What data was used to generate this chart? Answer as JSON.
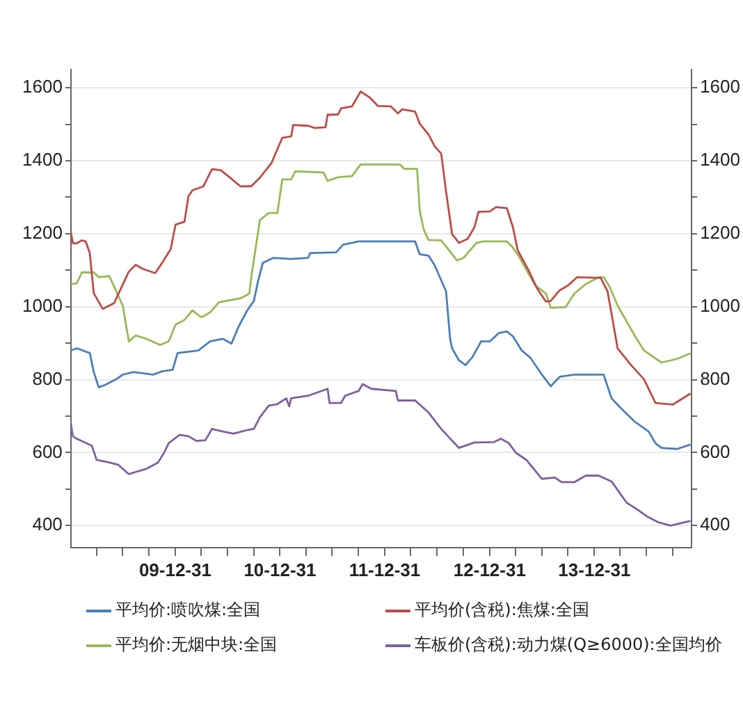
{
  "chart_data": {
    "type": "line",
    "legend": "bottom",
    "grid": "y",
    "marker": "none",
    "line_style": "solid",
    "xlim": [
      "2009-01-01",
      "2014-12-05"
    ],
    "xticks": [
      {
        "value": "2009-03-31",
        "label": null
      },
      {
        "value": "2009-06-30",
        "label": null
      },
      {
        "value": "2009-09-30",
        "label": null
      },
      {
        "value": "2009-12-31",
        "label": "09-12-31"
      },
      {
        "value": "2010-03-31",
        "label": null
      },
      {
        "value": "2010-06-30",
        "label": null
      },
      {
        "value": "2010-09-30",
        "label": null
      },
      {
        "value": "2010-12-31",
        "label": "10-12-31"
      },
      {
        "value": "2011-03-31",
        "label": null
      },
      {
        "value": "2011-06-30",
        "label": null
      },
      {
        "value": "2011-09-30",
        "label": null
      },
      {
        "value": "2011-12-31",
        "label": "11-12-31"
      },
      {
        "value": "2012-03-31",
        "label": null
      },
      {
        "value": "2012-06-30",
        "label": null
      },
      {
        "value": "2012-09-30",
        "label": null
      },
      {
        "value": "2012-12-31",
        "label": "12-12-31"
      },
      {
        "value": "2013-03-31",
        "label": null
      },
      {
        "value": "2013-06-30",
        "label": null
      },
      {
        "value": "2013-09-30",
        "label": null
      },
      {
        "value": "2013-12-31",
        "label": "13-12-31"
      },
      {
        "value": "2014-03-31",
        "label": null
      },
      {
        "value": "2014-06-30",
        "label": null
      },
      {
        "value": "2014-09-30",
        "label": null
      }
    ],
    "ylim": [
      340,
      1650
    ],
    "yticks": [
      400,
      {
        "value": 500,
        "label": null
      },
      600,
      {
        "value": 700,
        "label": null
      },
      800,
      {
        "value": 900,
        "label": null
      },
      1000,
      {
        "value": 1100,
        "label": null
      },
      1200,
      {
        "value": 1300,
        "label": null
      },
      1400,
      {
        "value": 1500,
        "label": null
      },
      1600
    ],
    "y2lim": [
      340,
      1650
    ],
    "y2ticks": [
      400,
      {
        "value": 500,
        "label": null
      },
      600,
      {
        "value": 700,
        "label": null
      },
      800,
      {
        "value": 900,
        "label": null
      },
      1000,
      {
        "value": 1100,
        "label": null
      },
      1200,
      {
        "value": 1300,
        "label": null
      },
      1400,
      {
        "value": 1500,
        "label": null
      },
      1600
    ],
    "series": [
      {
        "name": "平均价:喷吹煤:全国",
        "color": "#4a7ebb",
        "x": [
          "2009-01-01",
          "2009-01-22",
          "2009-03-08",
          "2009-03-22",
          "2009-04-08",
          "2009-05-01",
          "2009-06-08",
          "2009-07-01",
          "2009-08-08",
          "2009-10-15",
          "2009-11-15",
          "2009-12-22",
          "2010-01-08",
          "2010-03-22",
          "2010-05-01",
          "2010-06-15",
          "2010-07-15",
          "2010-08-08",
          "2010-09-08",
          "2010-10-01",
          "2010-10-15",
          "2010-11-01",
          "2010-12-08",
          "2011-02-08",
          "2011-04-08",
          "2011-04-15",
          "2011-07-15",
          "2011-08-08",
          "2011-10-01",
          "2012-04-15",
          "2012-05-01",
          "2012-06-01",
          "2012-06-22",
          "2012-08-01",
          "2012-08-15",
          "2012-08-22",
          "2012-09-15",
          "2012-10-08",
          "2012-11-01",
          "2012-12-01",
          "2013-01-01",
          "2013-02-01",
          "2013-03-01",
          "2013-03-22",
          "2013-04-22",
          "2013-05-22",
          "2013-07-01",
          "2013-08-01",
          "2013-09-01",
          "2013-10-22",
          "2014-02-01",
          "2014-03-01",
          "2014-04-01",
          "2014-05-22",
          "2014-07-08",
          "2014-08-01",
          "2014-08-22",
          "2014-10-15",
          "2014-12-01"
        ],
        "values": [
          880,
          886,
          873,
          821,
          779,
          786,
          801,
          814,
          821,
          814,
          823,
          827,
          873,
          880,
          905,
          912,
          899,
          944,
          990,
          1016,
          1068,
          1120,
          1134,
          1131,
          1134,
          1147,
          1149,
          1170,
          1179,
          1179,
          1144,
          1140,
          1114,
          1042,
          912,
          886,
          853,
          840,
          862,
          905,
          905,
          928,
          932,
          919,
          880,
          860,
          814,
          782,
          808,
          814,
          814,
          749,
          723,
          684,
          658,
          626,
          613,
          610,
          622
        ]
      },
      {
        "name": "平均价(含税):焦煤:全国",
        "color": "#be4b48",
        "x": [
          "2009-01-01",
          "2009-01-08",
          "2009-01-22",
          "2009-02-08",
          "2009-02-22",
          "2009-03-08",
          "2009-03-22",
          "2009-04-22",
          "2009-06-01",
          "2009-07-01",
          "2009-07-22",
          "2009-08-15",
          "2009-09-08",
          "2009-10-22",
          "2009-11-15",
          "2009-12-15",
          "2010-01-01",
          "2010-02-01",
          "2010-02-15",
          "2010-03-01",
          "2010-04-08",
          "2010-05-08",
          "2010-06-08",
          "2010-07-08",
          "2010-08-15",
          "2010-09-22",
          "2010-10-22",
          "2010-12-01",
          "2011-01-08",
          "2011-02-08",
          "2011-02-15",
          "2011-04-08",
          "2011-05-01",
          "2011-06-08",
          "2011-06-15",
          "2011-07-22",
          "2011-08-01",
          "2011-09-08",
          "2011-10-08",
          "2011-11-08",
          "2011-12-08",
          "2012-01-22",
          "2012-02-15",
          "2012-03-01",
          "2012-04-15",
          "2012-05-01",
          "2012-06-01",
          "2012-06-22",
          "2012-07-15",
          "2012-08-01",
          "2012-08-22",
          "2012-09-15",
          "2012-10-15",
          "2012-11-08",
          "2012-11-22",
          "2013-01-01",
          "2013-01-22",
          "2013-03-01",
          "2013-03-22",
          "2013-04-08",
          "2013-05-15",
          "2013-06-15",
          "2013-07-15",
          "2013-08-01",
          "2013-09-01",
          "2013-10-01",
          "2013-11-01",
          "2014-01-22",
          "2014-02-15",
          "2014-03-22",
          "2014-05-08",
          "2014-06-22",
          "2014-08-01",
          "2014-10-01",
          "2014-12-01"
        ],
        "values": [
          1205,
          1174,
          1174,
          1182,
          1179,
          1147,
          1037,
          994,
          1010,
          1061,
          1096,
          1115,
          1104,
          1092,
          1120,
          1158,
          1225,
          1233,
          1303,
          1319,
          1330,
          1377,
          1374,
          1355,
          1330,
          1330,
          1354,
          1393,
          1463,
          1467,
          1498,
          1496,
          1490,
          1492,
          1526,
          1527,
          1544,
          1549,
          1590,
          1574,
          1550,
          1549,
          1530,
          1541,
          1535,
          1502,
          1472,
          1440,
          1420,
          1316,
          1199,
          1175,
          1186,
          1218,
          1260,
          1261,
          1273,
          1270,
          1218,
          1154,
          1101,
          1049,
          1014,
          1016,
          1045,
          1059,
          1081,
          1079,
          1042,
          886,
          840,
          801,
          736,
          732,
          762
        ]
      },
      {
        "name": "平均价:无烟中块:全国",
        "color": "#98b954",
        "x": [
          "2009-01-01",
          "2009-01-22",
          "2009-02-08",
          "2009-03-22",
          "2009-04-08",
          "2009-05-15",
          "2009-06-01",
          "2009-07-01",
          "2009-07-22",
          "2009-08-15",
          "2009-09-22",
          "2009-11-08",
          "2009-12-08",
          "2010-01-01",
          "2010-02-01",
          "2010-03-01",
          "2010-04-01",
          "2010-05-01",
          "2010-06-01",
          "2010-08-15",
          "2010-09-15",
          "2010-09-22",
          "2010-10-22",
          "2010-11-22",
          "2010-12-22",
          "2011-01-08",
          "2011-02-08",
          "2011-02-22",
          "2011-06-01",
          "2011-06-15",
          "2011-07-22",
          "2011-09-08",
          "2011-10-08",
          "2012-02-22",
          "2012-03-08",
          "2012-04-22",
          "2012-05-01",
          "2012-05-15",
          "2012-06-01",
          "2012-07-15",
          "2012-09-08",
          "2012-10-01",
          "2012-11-15",
          "2012-12-08",
          "2013-03-01",
          "2013-03-22",
          "2013-04-15",
          "2013-05-08",
          "2013-06-08",
          "2013-07-15",
          "2013-08-01",
          "2013-09-22",
          "2013-10-22",
          "2013-12-01",
          "2014-01-15",
          "2014-02-01",
          "2014-02-22",
          "2014-03-22",
          "2014-05-22",
          "2014-06-22",
          "2014-08-22",
          "2014-10-15",
          "2014-12-01"
        ],
        "values": [
          1062,
          1064,
          1094,
          1094,
          1081,
          1084,
          1055,
          1003,
          905,
          921,
          912,
          895,
          905,
          951,
          964,
          990,
          971,
          984,
          1012,
          1023,
          1036,
          1081,
          1238,
          1257,
          1257,
          1349,
          1349,
          1371,
          1368,
          1345,
          1355,
          1358,
          1390,
          1390,
          1378,
          1378,
          1264,
          1212,
          1183,
          1182,
          1127,
          1134,
          1175,
          1179,
          1179,
          1162,
          1134,
          1101,
          1058,
          1036,
          997,
          999,
          1036,
          1062,
          1081,
          1081,
          1055,
          1003,
          919,
          880,
          847,
          857,
          872
        ]
      },
      {
        "name": "车板价(含税):动力煤(Q≥6000):全国均价",
        "color": "#7d60a0",
        "x": [
          "2009-01-01",
          "2009-01-08",
          "2009-01-22",
          "2009-03-15",
          "2009-04-01",
          "2009-05-15",
          "2009-06-15",
          "2009-07-22",
          "2009-08-15",
          "2009-09-22",
          "2009-11-01",
          "2009-11-22",
          "2009-12-08",
          "2010-01-15",
          "2010-02-15",
          "2010-03-15",
          "2010-04-15",
          "2010-05-08",
          "2010-06-15",
          "2010-07-22",
          "2010-09-08",
          "2010-10-01",
          "2010-10-22",
          "2010-11-22",
          "2010-12-22",
          "2011-01-22",
          "2011-02-01",
          "2011-02-08",
          "2011-04-08",
          "2011-06-15",
          "2011-06-22",
          "2011-08-01",
          "2011-08-15",
          "2011-10-01",
          "2011-10-15",
          "2011-11-15",
          "2012-02-08",
          "2012-02-15",
          "2012-04-15",
          "2012-06-01",
          "2012-07-15",
          "2012-09-15",
          "2012-11-08",
          "2013-01-15",
          "2013-02-08",
          "2013-03-08",
          "2013-04-01",
          "2013-05-08",
          "2013-07-01",
          "2013-08-15",
          "2013-09-08",
          "2013-10-22",
          "2013-12-01",
          "2014-01-15",
          "2014-03-01",
          "2014-04-22",
          "2014-06-01",
          "2014-07-01",
          "2014-08-08",
          "2014-09-22",
          "2014-12-01"
        ],
        "values": [
          680,
          645,
          638,
          619,
          580,
          573,
          567,
          541,
          547,
          556,
          573,
          600,
          626,
          649,
          645,
          632,
          634,
          665,
          658,
          652,
          662,
          665,
          697,
          729,
          733,
          749,
          727,
          749,
          756,
          775,
          736,
          736,
          756,
          769,
          788,
          775,
          769,
          743,
          743,
          710,
          665,
          613,
          628,
          629,
          638,
          626,
          600,
          580,
          528,
          532,
          519,
          519,
          537,
          537,
          521,
          463,
          443,
          426,
          410,
          400,
          413
        ]
      }
    ]
  }
}
